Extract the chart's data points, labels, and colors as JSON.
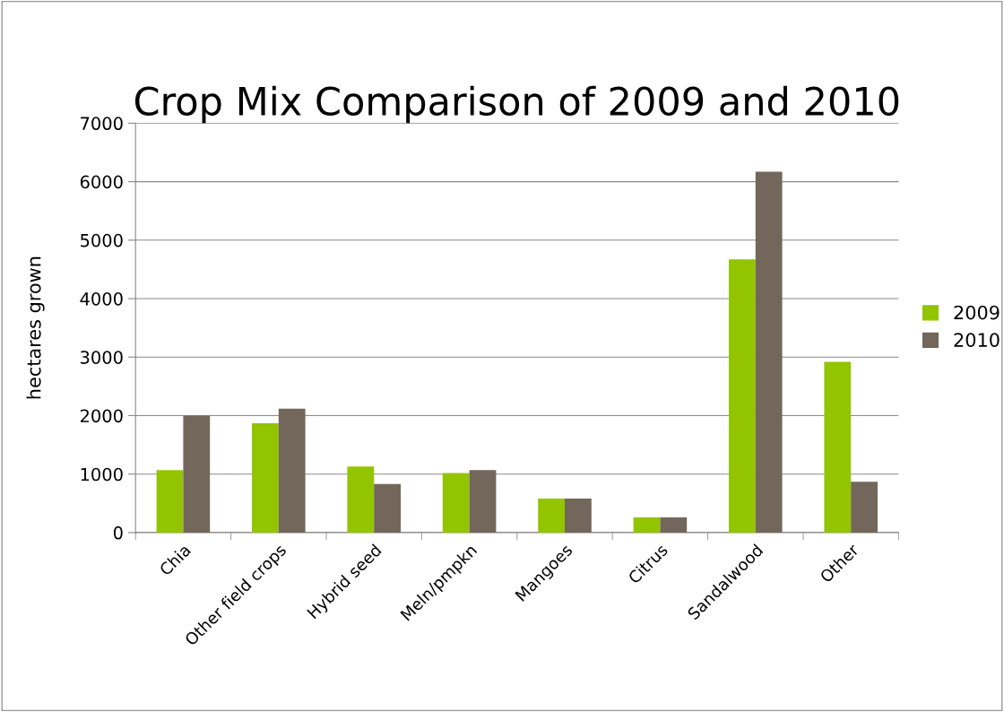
{
  "chart_data": {
    "type": "bar",
    "title": "Crop Mix Comparison of 2009 and 2010",
    "ylabel": "hectares grown",
    "categories": [
      "Chia",
      "Other field crops",
      "Hybrid seed",
      "Meln/pmpkn",
      "Mangoes",
      "Citrus",
      "Sandalwood",
      "Other"
    ],
    "series": [
      {
        "name": "2009",
        "color": "#92c500",
        "values": [
          1070,
          1870,
          1130,
          1020,
          580,
          260,
          4670,
          2920
        ]
      },
      {
        "name": "2010",
        "color": "#72675a",
        "values": [
          2000,
          2120,
          830,
          1070,
          580,
          260,
          6170,
          870
        ]
      }
    ],
    "ylim": [
      0,
      7000
    ],
    "yticks": [
      0,
      1000,
      2000,
      3000,
      4000,
      5000,
      6000,
      7000
    ],
    "grid": "y",
    "legend": "right"
  }
}
